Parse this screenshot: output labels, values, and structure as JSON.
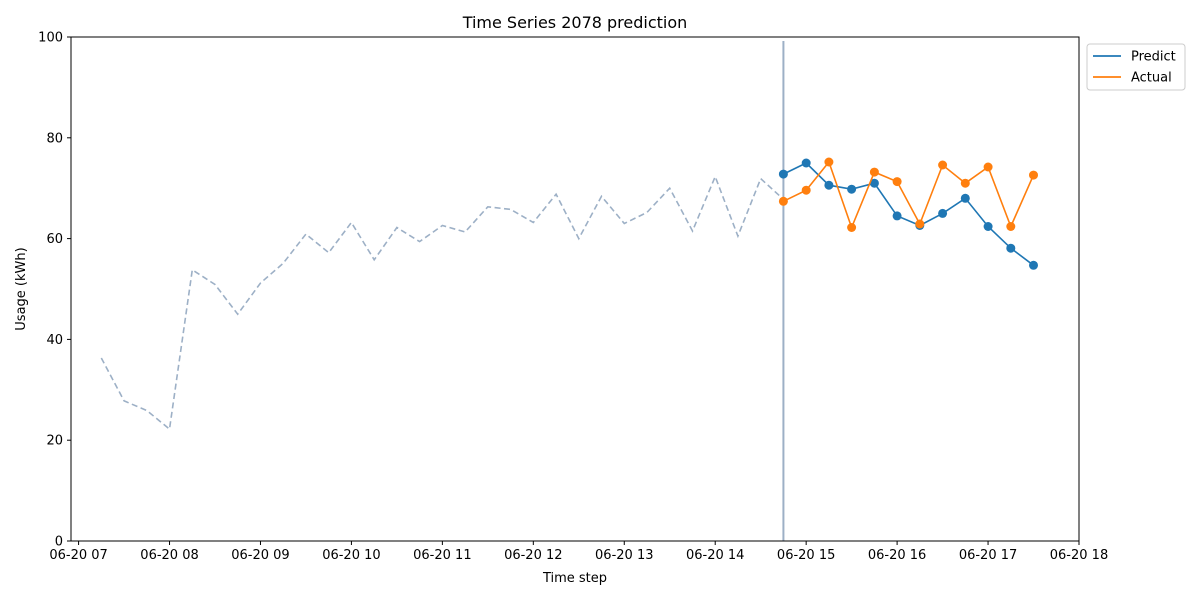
{
  "chart_data": {
    "type": "line",
    "title": "Time Series 2078 prediction",
    "xlabel": "Time step",
    "ylabel": "Usage (kWh)",
    "ylim": [
      0,
      100
    ],
    "xlim": [
      "2078-06-20 06:55",
      "2078-06-20 18:00"
    ],
    "x_ticks": [
      {
        "t": "2078-06-20 07:00",
        "label": "06-20 07"
      },
      {
        "t": "2078-06-20 08:00",
        "label": "06-20 08"
      },
      {
        "t": "2078-06-20 09:00",
        "label": "06-20 09"
      },
      {
        "t": "2078-06-20 10:00",
        "label": "06-20 10"
      },
      {
        "t": "2078-06-20 11:00",
        "label": "06-20 11"
      },
      {
        "t": "2078-06-20 12:00",
        "label": "06-20 12"
      },
      {
        "t": "2078-06-20 13:00",
        "label": "06-20 13"
      },
      {
        "t": "2078-06-20 14:00",
        "label": "06-20 14"
      },
      {
        "t": "2078-06-20 15:00",
        "label": "06-20 15"
      },
      {
        "t": "2078-06-20 16:00",
        "label": "06-20 16"
      },
      {
        "t": "2078-06-20 17:00",
        "label": "06-20 17"
      },
      {
        "t": "2078-06-20 18:00",
        "label": "06-20 18"
      }
    ],
    "y_ticks": [
      0,
      20,
      40,
      60,
      80,
      100
    ],
    "grid": false,
    "legend_position": "outside-top-right",
    "forecast_start": "2078-06-20 14:45",
    "history": {
      "color": "#9db0c6",
      "style": "dashed",
      "x": [
        "2078-06-20 07:15",
        "2078-06-20 07:30",
        "2078-06-20 07:45",
        "2078-06-20 08:00",
        "2078-06-20 08:15",
        "2078-06-20 08:30",
        "2078-06-20 08:45",
        "2078-06-20 09:00",
        "2078-06-20 09:15",
        "2078-06-20 09:30",
        "2078-06-20 09:45",
        "2078-06-20 10:00",
        "2078-06-20 10:15",
        "2078-06-20 10:30",
        "2078-06-20 10:45",
        "2078-06-20 11:00",
        "2078-06-20 11:15",
        "2078-06-20 11:30",
        "2078-06-20 11:45",
        "2078-06-20 12:00",
        "2078-06-20 12:15",
        "2078-06-20 12:30",
        "2078-06-20 12:45",
        "2078-06-20 13:00",
        "2078-06-20 13:15",
        "2078-06-20 13:30",
        "2078-06-20 13:45",
        "2078-06-20 14:00",
        "2078-06-20 14:15",
        "2078-06-20 14:30",
        "2078-06-20 14:45"
      ],
      "values": [
        36.3,
        27.8,
        25.9,
        22.2,
        53.8,
        50.9,
        45.0,
        51.2,
        55.1,
        60.9,
        57.2,
        63.2,
        55.8,
        62.2,
        59.4,
        62.6,
        61.3,
        66.3,
        65.8,
        63.2,
        68.8,
        60.0,
        68.4,
        63.0,
        65.2,
        70.0,
        61.5,
        72.3,
        60.5,
        71.9,
        67.8
      ]
    },
    "series": [
      {
        "name": "Predict",
        "color": "#1f77b4",
        "x": [
          "2078-06-20 14:45",
          "2078-06-20 15:00",
          "2078-06-20 15:15",
          "2078-06-20 15:30",
          "2078-06-20 15:45",
          "2078-06-20 16:00",
          "2078-06-20 16:15",
          "2078-06-20 16:30",
          "2078-06-20 16:45",
          "2078-06-20 17:00",
          "2078-06-20 17:15",
          "2078-06-20 17:30"
        ],
        "values": [
          72.8,
          75.0,
          70.6,
          69.8,
          71.0,
          64.5,
          62.6,
          65.0,
          68.0,
          62.4,
          58.1,
          54.7
        ]
      },
      {
        "name": "Actual",
        "color": "#ff7f0e",
        "x": [
          "2078-06-20 14:45",
          "2078-06-20 15:00",
          "2078-06-20 15:15",
          "2078-06-20 15:30",
          "2078-06-20 15:45",
          "2078-06-20 16:00",
          "2078-06-20 16:15",
          "2078-06-20 16:30",
          "2078-06-20 16:45",
          "2078-06-20 17:00",
          "2078-06-20 17:15",
          "2078-06-20 17:30"
        ],
        "values": [
          67.4,
          69.6,
          75.2,
          62.2,
          73.2,
          71.3,
          62.9,
          74.6,
          71.0,
          74.2,
          62.4,
          72.6
        ]
      }
    ]
  }
}
